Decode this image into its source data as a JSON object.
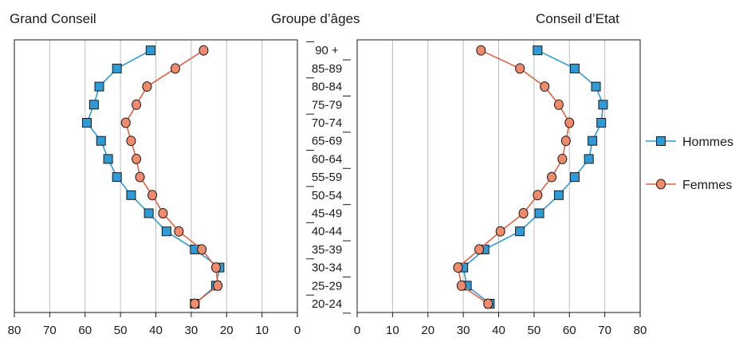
{
  "titles": {
    "left": "Grand Conseil",
    "middle": "Groupe d’âges",
    "right": "Conseil d’Etat"
  },
  "colors": {
    "hommes_fill": "#2e9bd6",
    "hommes_line": "#2e9bd6",
    "femmes_fill": "#f08a6c",
    "femmes_line": "#e4603f",
    "marker_stroke": "#1a1a1a",
    "grid": "#bdbdbd",
    "axis": "#1a1a1a"
  },
  "chart_data": [
    {
      "type": "line",
      "panel": "left",
      "title": "Grand Conseil",
      "x_direction": "reversed",
      "xlim": [
        0,
        80
      ],
      "xticks": [
        80,
        70,
        60,
        50,
        40,
        30,
        20,
        10,
        0
      ],
      "grid": true,
      "categories": [
        "20-24",
        "25-29",
        "30-34",
        "35-39",
        "40-44",
        "45-49",
        "50-54",
        "55-59",
        "60-64",
        "65-69",
        "70-74",
        "75-79",
        "80-84",
        "85-89",
        "90 +"
      ],
      "series": [
        {
          "name": "Hommes",
          "marker": "square",
          "values": [
            29,
            23,
            22,
            29,
            37,
            42,
            47,
            51,
            53.5,
            55.5,
            59.5,
            57.5,
            56,
            51,
            41.5
          ]
        },
        {
          "name": "Femmes",
          "marker": "circle",
          "values": [
            29,
            22.5,
            23,
            27,
            33.5,
            38,
            41,
            44.5,
            45.5,
            47,
            48.5,
            45.5,
            42.5,
            34.5,
            26.5
          ]
        }
      ]
    },
    {
      "type": "line",
      "panel": "right",
      "title": "Conseil d’Etat",
      "xlim": [
        0,
        80
      ],
      "xticks": [
        0,
        10,
        20,
        30,
        40,
        50,
        60,
        70,
        80
      ],
      "grid": true,
      "categories": [
        "20-24",
        "25-29",
        "30-34",
        "35-39",
        "40-44",
        "45-49",
        "50-54",
        "55-59",
        "60-64",
        "65-69",
        "70-74",
        "75-79",
        "80-84",
        "85-89",
        "90 +"
      ],
      "series": [
        {
          "name": "Hommes",
          "marker": "square",
          "values": [
            37.5,
            31,
            30,
            36,
            46,
            51.5,
            57,
            61.5,
            65.5,
            66.5,
            69,
            69.5,
            67.5,
            61.5,
            51
          ]
        },
        {
          "name": "Femmes",
          "marker": "circle",
          "values": [
            37,
            29.5,
            28.5,
            34.5,
            40.5,
            47,
            51,
            55,
            58,
            59,
            60,
            57,
            53,
            46,
            35
          ]
        }
      ]
    }
  ],
  "legend": {
    "placement": "right",
    "items": [
      {
        "label": "Hommes",
        "marker": "square"
      },
      {
        "label": "Femmes",
        "marker": "circle"
      }
    ]
  }
}
